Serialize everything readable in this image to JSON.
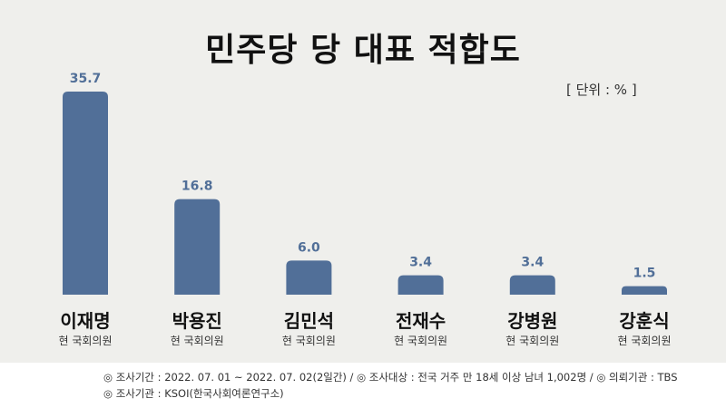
{
  "chart_data": {
    "type": "bar",
    "title": "민주당 당 대표 적합도",
    "unit_label": "[ 단위 : % ]",
    "categories": [
      "이재명",
      "박용진",
      "김민석",
      "전재수",
      "강병원",
      "강훈식"
    ],
    "subtitles": [
      "현 국회의원",
      "현 국회의원",
      "현 국회의원",
      "현 국회의원",
      "현 국회의원",
      "현 국회의원"
    ],
    "values": [
      35.7,
      16.8,
      6.0,
      3.4,
      3.4,
      1.5
    ],
    "value_labels": [
      "35.7",
      "16.8",
      "6.0",
      "3.4",
      "3.4",
      "1.5"
    ],
    "ylim": [
      0,
      35.7
    ],
    "bar_color": "#516f98",
    "label_color": "#516f98",
    "grid": false,
    "legend": "none"
  },
  "footer": {
    "line1": "◎ 조사기간 : 2022. 07. 01 ~ 2022. 07. 02(2일간)  /  ◎ 조사대상 : 전국 거주 만 18세 이상 남녀 1,002명  /  ◎ 의뢰기관 : TBS",
    "line2": "◎ 조사기관 : KSOI(한국사회여론연구소)"
  }
}
